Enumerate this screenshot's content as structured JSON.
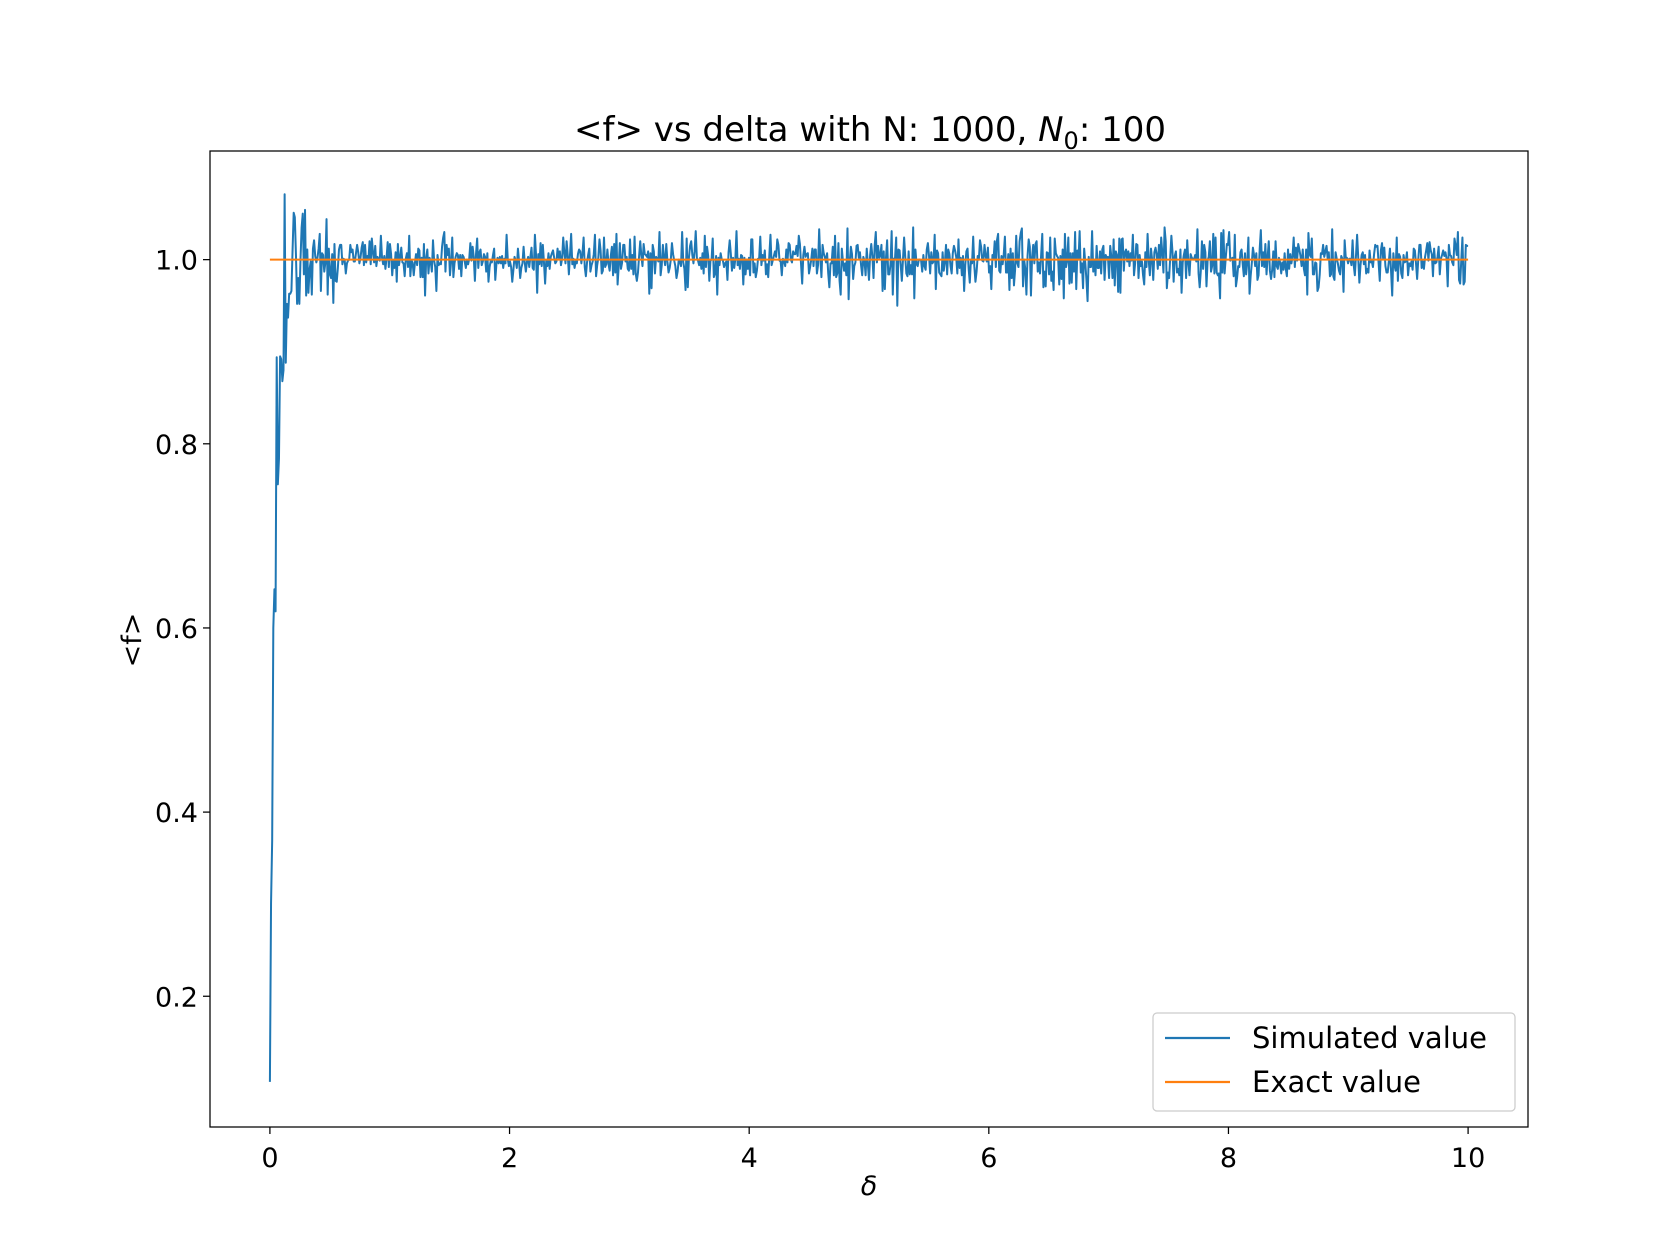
{
  "chart_data": {
    "type": "line",
    "title": {
      "prefix": "<f> vs delta with N: 1000, ",
      "var": "N",
      "sub": "0",
      "suffix": ": 100"
    },
    "xlabel": "δ",
    "ylabel": "<f>",
    "xlim": [
      -0.5,
      10.5
    ],
    "ylim": [
      0.058,
      1.118
    ],
    "xticks": [
      0,
      2,
      4,
      6,
      8,
      10
    ],
    "yticks": [
      0.2,
      0.4,
      0.6,
      0.8,
      1.0
    ],
    "grid": false,
    "legend_position": "lower-right",
    "series": [
      {
        "name": "Simulated value",
        "color": "#1f77b4",
        "x_start": 0.0,
        "x_end": 10.0,
        "values": [
          0.107,
          0.301,
          0.369,
          0.6,
          0.642,
          0.618,
          0.894,
          0.756,
          0.784,
          0.895,
          0.892,
          0.868,
          0.88,
          1.071,
          0.888,
          0.952,
          0.937,
          0.963,
          0.963,
          0.966,
          1.01,
          1.051,
          1.046,
          1.005,
          0.952,
          0.98,
          0.952,
          1.0,
          1.035,
          1.05,
          0.984,
          1.054,
          0.961,
          1.011,
          0.964,
          0.989,
          0.998,
          0.962,
          1.012,
          1.021,
          1.004,
          0.997,
          1.002,
          1.012,
          1.028,
          0.966,
          1.007,
          1.005,
          0.987,
          0.997,
          1.044,
          0.962,
          1.012,
          0.984,
          0.98,
          1.006,
          0.953,
          1.017,
          0.977,
          0.976,
          0.991,
          1.011,
          1.016,
          1.016,
          0.995,
          1.001,
          1.0,
          0.985,
          0.996,
          0.999,
          1.0,
          1.016,
          1.008,
          1.011,
          0.998,
          0.998,
          1.007,
          1.016,
          1.008,
          0.996,
          1.002,
          1.013,
          1.019,
          0.994,
          1.016,
          0.997,
          1.004,
          1.0,
          1.02,
          0.995,
          1.023,
          1.008,
          0.997,
          1.015,
          0.993,
          1.003,
          1.0,
          0.999,
          1.026,
          1.002,
          0.995,
          1.004,
          0.99,
          1.002,
          1.019,
          0.992,
          1.017,
          1.006,
          0.983,
          0.999,
          0.991,
          1.008,
          0.976,
          1.017,
          0.994,
          1.003,
          1.013,
          0.997,
          0.996,
          0.982,
          1.001,
          1.007,
          0.992,
          1.026,
          0.982,
          0.999,
          0.997,
          0.983,
          0.996,
          1.006,
          0.994,
          1.012,
          1.01,
          0.981,
          1.002,
          0.981,
          1.017,
          0.961,
          1.002,
          1.011,
          0.985,
          1.002,
          0.998,
          0.987,
          1.021,
          0.999,
          0.992,
          0.966,
          1.005,
          0.994,
          0.996,
          0.995,
          1.014,
          1.024,
          1.03,
          0.987,
          1.016,
          1.005,
          1.012,
          0.983,
          0.998,
          1.024,
          0.981,
          0.996,
          1.003,
          1.007,
          1.005,
          0.99,
          1.005,
          0.982,
          1.005,
          1.003,
          0.998,
          0.991,
          1.0,
          0.995,
          1.001,
          1.018,
          0.999,
          1.014,
          1.003,
          0.977,
          1.006,
          1.023,
          0.991,
          1.008,
          1.011,
          0.994,
          0.998,
          1.006,
          1.003,
          0.987,
          1.007,
          0.976,
          0.992,
          0.999,
          0.997,
          1.005,
          1.012,
          0.978,
          0.995,
          1.002,
          0.996,
          1.003,
          0.996,
          1.004,
          0.991,
          1.001,
          0.996,
          1.027,
          1.001,
          0.993,
          0.998,
          0.992,
          0.976,
          0.989,
          1.003,
          0.999,
          0.991,
          1.012,
          0.998,
          0.98,
          0.991,
          0.996,
          1.014,
          0.997,
          0.987,
          0.998,
          1.003,
          0.992,
          1.003,
          1.013,
          0.991,
          0.989,
          1.027,
          1.005,
          0.964,
          1.006,
          0.995,
          1.018,
          0.993,
          1.016,
          0.997,
          0.974,
          0.999,
          0.993,
          1.007,
          0.99,
          1.003,
          1.007,
          1.01,
          1.002,
          0.996,
          0.998,
          1.012,
          1.002,
          1.009,
          0.994,
          1.001,
          1.024,
          1.007,
          0.996,
          1.02,
          1.005,
          0.984,
          1.006,
          1.028,
          0.995,
          1.001,
          0.991,
          0.998,
          0.996,
          1.006,
          1.011,
          1.009,
          0.996,
          1.007,
          1.024,
          0.992,
          0.982,
          0.997,
          1.005,
          1.012,
          0.987,
          0.994,
          0.998,
          1.006,
          1.027,
          0.982,
          0.994,
          1.002,
          1.022,
          1.01,
          0.985,
          0.988,
          1.024,
          0.992,
          0.995,
          1.011,
          0.995,
          0.988,
          1.004,
          1.014,
          0.983,
          1.017,
          0.986,
          1.028,
          0.973,
          0.993,
          1.018,
          0.99,
          0.997,
          1.016,
          1.016,
          0.998,
          1.003,
          0.99,
          0.988,
          1.022,
          0.99,
          1.005,
          0.984,
          1.025,
          0.985,
          0.977,
          0.986,
          1.004,
          1.02,
          1.004,
          0.993,
          1.017,
          1.006,
          1.005,
          1.003,
          1.009,
          0.963,
          1.007,
          0.969,
          1.016,
          1.009,
          0.985,
          1.003,
          1.001,
          0.998,
          1.03,
          0.983,
          0.994,
          1.016,
          1.002,
          0.994,
          1.017,
          0.998,
          0.986,
          0.991,
          1.0,
          1.018,
          1.006,
          0.999,
          0.993,
          0.98,
          0.987,
          1.0,
          0.998,
          0.993,
          1.03,
          0.997,
          0.99,
          0.967,
          1.023,
          0.97,
          1.002,
          1.015,
          1.02,
          1.005,
          0.996,
          1.009,
          1.031,
          1.002,
          0.999,
          0.994,
          1.002,
          0.99,
          1.007,
          0.985,
          1.026,
          0.992,
          1.014,
          1.004,
          0.977,
          0.999,
          1.0,
          1.023,
          0.981,
          0.985,
          1.004,
          0.962,
          1.002,
          0.994,
          1.007,
          1.0,
          0.999,
          0.992,
          0.996,
          0.998,
          0.978,
          1.008,
          1.021,
          1.006,
          0.988,
          1.002,
          0.991,
          1.001,
          1.031,
          0.994,
          1.001,
          0.99,
          1.005,
          1.004,
          0.973,
          1.002,
          0.984,
          1.0,
          0.99,
          1.002,
          0.983,
          1.022,
          1.022,
          0.986,
          0.996,
          0.981,
          0.988,
          1.001,
          1.001,
          1.025,
          0.994,
          1.005,
          0.999,
          1.01,
          0.984,
          0.995,
          0.981,
          1.005,
          1.027,
          0.994,
          0.999,
          1.004,
          1.009,
          1.003,
          1.022,
          1.016,
          0.999,
          0.998,
          0.983,
          1.001,
          0.999,
          0.993,
          1.011,
          0.997,
          1.018,
          1.016,
          1.0,
          0.997,
          1.009,
          1.006,
          1.006,
          1.015,
          1.004,
          1.026,
          1.017,
          0.995,
          0.974,
          1.005,
          1.014,
          1.003,
          1.006,
          1.007,
          0.985,
          0.992,
          1.0,
          1.012,
          0.993,
          1.011,
          1.011,
          0.985,
          0.994,
          1.033,
          1.002,
          0.981,
          1.016,
          1.007,
          1.003,
          0.997,
          1.007,
          0.985,
          0.97,
          0.996,
          0.996,
          1.014,
          0.983,
          1.026,
          0.981,
          0.985,
          1.018,
          0.977,
          0.962,
          1.012,
          0.998,
          0.988,
          0.996,
          0.983,
          1.034,
          0.957,
          0.998,
          1.014,
          1.006,
          0.979,
          0.993,
          0.997,
          1.015,
          1.016,
          1.002,
          1.008,
          0.994,
          0.983,
          1.003,
          0.999,
          0.983,
          1.012,
          0.995,
          0.978,
          1.005,
          1.017,
          1.003,
          0.98,
          1.015,
          1.03,
          0.997,
          1.015,
          1.002,
          1.005,
          1.016,
          0.966,
          1.009,
          0.968,
          1.002,
          1.021,
          0.984,
          0.984,
          0.995,
          1.031,
          0.962,
          1.001,
          1.002,
          1.024,
          0.95,
          1.011,
          1.01,
          0.994,
          0.977,
          1.0,
          1.024,
          1.003,
          0.985,
          0.982,
          1.009,
          0.984,
          0.994,
          0.984,
          1.035,
          0.958,
          1.011,
          0.995,
          0.993,
          1.0,
          1.0,
          0.999,
          0.987,
          1.005,
          0.993,
          0.989,
          1.011,
          1.018,
          1.004,
          0.985,
          1.008,
          0.996,
          0.998,
          1.027,
          0.968,
          1.01,
          1.007,
          0.986,
          0.984,
          0.982,
          1.008,
          0.988,
          0.997,
          1.016,
          0.984,
          1.011,
          1.006,
          0.993,
          0.985,
          1.007,
          1.015,
          1.01,
          1.003,
          0.985,
          1.022,
          0.991,
          1.002,
          0.983,
          1.004,
          0.966,
          0.994,
          1.009,
          1.012,
          0.99,
          0.975,
          1.0,
          0.996,
          1.025,
          0.993,
          0.976,
          0.987,
          1.004,
          1.0,
          1.021,
          1.014,
          0.999,
          0.998,
          1.016,
          1.004,
          0.998,
          1.013,
          0.986,
          0.993,
          0.968,
          1.005,
          1.001,
          1.02,
          0.992,
          1.021,
          1.028,
          0.988,
          0.986,
          1.004,
          0.995,
          1.006,
          1.025,
          0.986,
          0.986,
          1.006,
          0.967,
          1.012,
          0.98,
          1.007,
          0.972,
          0.989,
          1.026,
          0.996,
          0.992,
          1.02,
          1.029,
          1.034,
          0.971,
          1.0,
          0.99,
          0.962,
          1.004,
          1.022,
          1.014,
          0.961,
          1.003,
          1.016,
          0.996,
          1.017,
          1.02,
          0.987,
          0.997,
          0.985,
          1.005,
          1.028,
          0.97,
          0.987,
          0.971,
          1.008,
          1.007,
          0.984,
          1.024,
          0.977,
          0.987,
          0.967,
          1.023,
          1.007,
          1.004,
          1.002,
          0.973,
          1.004,
          0.979,
          1.011,
          0.958,
          1.028,
          0.992,
          0.999,
          1.024,
          0.974,
          1.007,
          0.975,
          1.007,
          0.987,
          1.03,
          0.968,
          1.01,
          1.0,
          1.031,
          0.986,
          0.996,
          0.969,
          1.012,
          0.996,
          0.978,
          0.955,
          1.003,
          0.992,
          0.992,
          1.031,
          0.987,
          1.0,
          0.983,
          1.015,
          0.991,
          0.991,
          1.009,
          0.985,
          1.011,
          1.015,
          0.978,
          1.005,
          1.002,
          1.003,
          0.98,
          1.015,
          1.003,
          0.98,
          1.022,
          0.972,
          1.009,
          1.005,
          0.965,
          1.023,
          0.964,
          1.022,
          1.023,
          0.988,
          1.008,
          1.011,
          0.998,
          1.009,
          0.993,
          1.007,
          0.999,
          1.027,
          0.983,
          0.996,
          1.017,
          1.016,
          0.98,
          1.005,
          0.993,
          0.998,
          0.983,
          0.973,
          1.008,
          0.992,
          1.028,
          0.999,
          0.983,
          1.012,
          1.0,
          0.978,
          1.008,
          1.013,
          1.006,
          0.99,
          1.016,
          0.994,
          1.024,
          1.007,
          0.986,
          1.035,
          1.02,
          0.969,
          0.986,
          0.98,
          1.003,
          1.026,
          1.008,
          0.976,
          1.004,
          1.009,
          0.986,
          0.99,
          0.983,
          1.011,
          0.964,
          0.997,
          1.005,
          1.011,
          0.98,
          1.021,
          0.997,
          0.983,
          1.006,
          1.002,
          1.001,
          1.0,
          1.005,
          0.998,
          1.033,
          0.985,
          0.97,
          0.988,
          1.02,
          0.99,
          1.016,
          1.008,
          0.971,
          0.999,
          1.003,
          1.02,
          0.987,
          0.993,
          1.028,
          0.985,
          1.024,
          0.986,
          0.983,
          0.985,
          0.958,
          1.029,
          0.986,
          1.032,
          0.985,
          1.002,
          1.017,
          1.016,
          1.03,
          0.999,
          1.001,
          1.002,
          0.982,
          1.027,
          0.971,
          0.98,
          0.993,
          0.992,
          1.008,
          1.011,
          0.995,
          0.982,
          1.007,
          0.984,
          0.997,
          1.024,
          0.963,
          0.982,
          0.996,
          1.013,
          1.005,
          0.993,
          1.007,
          0.978,
          0.983,
          1.012,
          1.032,
          0.993,
          1.008,
          0.992,
          1.017,
          0.984,
          1.003,
          1.02,
          0.988,
          0.979,
          0.989,
          1.009,
          0.981,
          1.02,
          0.993,
          0.99,
          1.002,
          0.997,
          0.985,
          0.997,
          0.989,
          1.007,
          0.99,
          0.982,
          1.011,
          0.99,
          1.006,
          0.996,
          1.004,
          1.024,
          0.992,
          1.013,
          0.999,
          1.017,
          1.011,
          1.004,
          0.993,
          1.011,
          0.99,
          0.983,
          1.011,
          0.962,
          1.029,
          1.006,
          1.003,
          1.023,
          0.984,
          0.984,
          0.997,
          0.996,
          0.966,
          0.97,
          0.984,
          1.007,
          1.006,
          1.016,
          1.003,
          1.009,
          1.015,
          1.001,
          1.008,
          0.982,
          0.984,
          1.033,
          0.982,
          0.978,
          1.008,
          1.001,
          0.996,
          0.988,
          0.984,
          1.004,
          1.001,
          0.965,
          1.021,
          1.002,
          1.002,
          0.996,
          1.001,
          1.001,
          0.994,
          1.021,
          0.994,
          0.983,
          1.004,
          1.027,
          1.002,
          0.975,
          0.994,
          1.005,
          1.008,
          0.995,
          1.005,
          0.985,
          0.99,
          0.986,
          1.01,
          0.997,
          0.998,
          0.992,
          1.006,
          1.016,
          1.014,
          1.015,
          0.996,
          0.977,
          1.01,
          1.018,
          1.001,
          1.013,
          0.993,
          0.986,
          0.986,
          0.998,
          1.012,
          0.987,
          0.961,
          1.007,
          0.994,
          0.988,
          1.024,
          0.977,
          1.006,
          1.003,
          0.985,
          0.98,
          1.005,
          0.997,
          0.998,
          1.008,
          0.983,
          0.996,
          0.993,
          0.998,
          0.989,
          1.012,
          1.01,
          0.996,
          0.979,
          1.0,
          1.016,
          1.016,
          0.991,
          0.998,
          0.99,
          1.003,
          1.01,
          1.018,
          0.999,
          1.019,
          1.01,
          1.006,
          0.982,
          1.012,
          0.996,
          0.997,
          1.003,
          1.014,
          0.984,
          1.001,
          1.005,
          1.01,
          1.004,
          1.008,
          1.001,
          0.971,
          1.016,
          1.005,
          1.004,
          0.997,
          0.994,
          1.023,
          1.015,
          1.005,
          1.03,
          0.978,
          0.974,
          1.0,
          1.024,
          0.973,
          0.976,
          1.016,
          1.015,
          1.015
        ]
      },
      {
        "name": "Exact value",
        "color": "#ff7f0e",
        "x": [
          0,
          10
        ],
        "values": [
          1.0,
          1.0
        ]
      }
    ]
  }
}
